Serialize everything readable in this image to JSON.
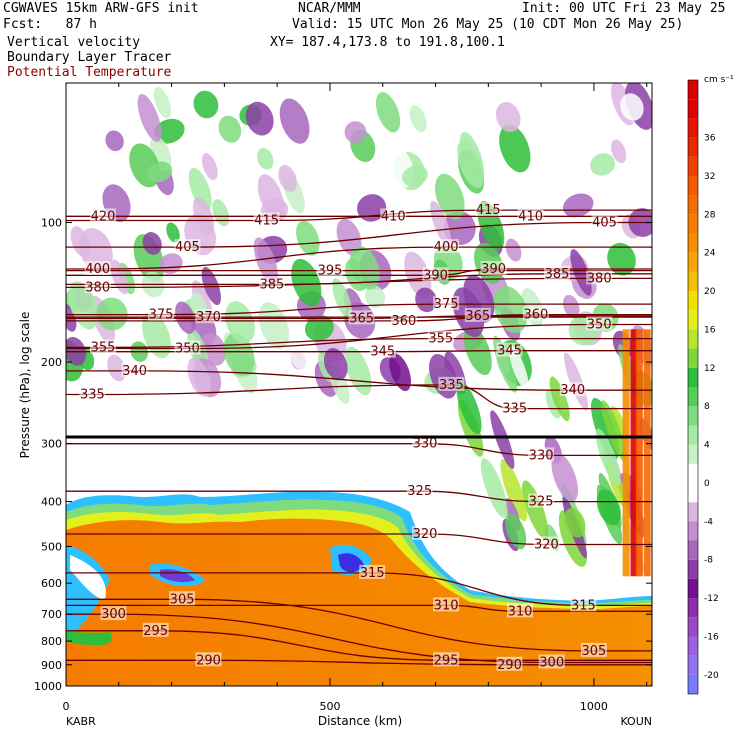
{
  "header": {
    "model": "CGWAVES 15km ARW-GFS init",
    "fcst": "Fcst:   87 h",
    "field1": "Vertical velocity",
    "field2": "Boundary Layer Tracer",
    "field3": "Potential Temperature",
    "org": "NCAR/MMM",
    "init": "Init: 00 UTC Fri 23 May 25",
    "valid": "Valid: 15 UTC Mon 26 May 25 (10 CDT Mon 26 May 25)",
    "xy": "XY= 187.4,173.8 to 191.8,100.1",
    "colors": {
      "field3": "#8b0000"
    }
  },
  "chart_data": {
    "type": "heatmap",
    "title": "Vertical velocity",
    "xlabel": "Distance (km)",
    "ylabel": "Pressure (hPa), log scale",
    "x_start_label": "KABR",
    "x_end_label": "KOUN",
    "xlim": [
      0,
      1110
    ],
    "ylim_hPa": [
      1000,
      50
    ],
    "y_scale": "log",
    "x_ticks": [
      0,
      500,
      1000
    ],
    "x_tick_labels": [
      "0",
      "500",
      "1000"
    ],
    "y_ticks": [
      100,
      200,
      300,
      400,
      500,
      600,
      700,
      800,
      900,
      1000
    ],
    "y_tick_labels": [
      "100",
      "200",
      "300",
      "400",
      "500",
      "600",
      "700",
      "800",
      "900",
      "1000"
    ],
    "colorbar": {
      "units": "cm s⁻¹",
      "bounds": [
        -22,
        -20,
        -18,
        -16,
        -14,
        -12,
        -10,
        -8,
        -6,
        -4,
        -2,
        2,
        4,
        6,
        8,
        10,
        12,
        14,
        16,
        18,
        20,
        22,
        24,
        26,
        28,
        30,
        32,
        34,
        36,
        38,
        40,
        42
      ],
      "colors": [
        "#7a7aff",
        "#8e72f0",
        "#9c60e0",
        "#9a49c6",
        "#8a2fa8",
        "#73118e",
        "#8b3fa6",
        "#a866bd",
        "#c48fd0",
        "#dcb6e2",
        "#ffffff",
        "#c6f0c6",
        "#a4eaa4",
        "#7edc7e",
        "#58cc58",
        "#2ebe3a",
        "#7dd63a",
        "#b6e52c",
        "#e4f01e",
        "#f2e000",
        "#f5c000",
        "#f5a400",
        "#f58e00",
        "#f57c00",
        "#f56c00",
        "#f55a00",
        "#f04000",
        "#ea2800",
        "#e51400",
        "#e00000",
        "#dc0000"
      ],
      "tick_values": [
        -20,
        -16,
        -12,
        -8,
        -4,
        0,
        4,
        8,
        12,
        16,
        20,
        24,
        28,
        32,
        36
      ],
      "tick_labels": [
        "-20",
        "-16",
        "-12",
        "-8",
        "-4",
        "0",
        "4",
        "8",
        "12",
        "16",
        "20",
        "24",
        "28",
        "32",
        "36"
      ]
    },
    "series": [
      {
        "name": "Boundary Layer Tracer",
        "color": "#f57c00"
      },
      {
        "name": "Potential Temperature",
        "color": "#6b0000"
      }
    ],
    "theta_labels": [
      {
        "text": "420",
        "x_km": 70,
        "p": 97
      },
      {
        "text": "415",
        "x_km": 380,
        "p": 99
      },
      {
        "text": "410",
        "x_km": 620,
        "p": 97
      },
      {
        "text": "415",
        "x_km": 800,
        "p": 94
      },
      {
        "text": "410",
        "x_km": 880,
        "p": 97
      },
      {
        "text": "405",
        "x_km": 1020,
        "p": 100
      },
      {
        "text": "405",
        "x_km": 230,
        "p": 113
      },
      {
        "text": "400",
        "x_km": 60,
        "p": 126
      },
      {
        "text": "400",
        "x_km": 720,
        "p": 113
      },
      {
        "text": "395",
        "x_km": 500,
        "p": 127
      },
      {
        "text": "390",
        "x_km": 700,
        "p": 130
      },
      {
        "text": "390",
        "x_km": 810,
        "p": 126
      },
      {
        "text": "385",
        "x_km": 390,
        "p": 136
      },
      {
        "text": "385",
        "x_km": 930,
        "p": 129
      },
      {
        "text": "380",
        "x_km": 1010,
        "p": 132
      },
      {
        "text": "380",
        "x_km": 60,
        "p": 138
      },
      {
        "text": "375",
        "x_km": 720,
        "p": 150
      },
      {
        "text": "375",
        "x_km": 180,
        "p": 158
      },
      {
        "text": "370",
        "x_km": 270,
        "p": 160
      },
      {
        "text": "365",
        "x_km": 560,
        "p": 161
      },
      {
        "text": "360",
        "x_km": 640,
        "p": 163
      },
      {
        "text": "365",
        "x_km": 780,
        "p": 159
      },
      {
        "text": "360",
        "x_km": 890,
        "p": 158
      },
      {
        "text": "350",
        "x_km": 1010,
        "p": 166
      },
      {
        "text": "355",
        "x_km": 70,
        "p": 186
      },
      {
        "text": "350",
        "x_km": 230,
        "p": 187
      },
      {
        "text": "355",
        "x_km": 710,
        "p": 178
      },
      {
        "text": "345",
        "x_km": 600,
        "p": 190
      },
      {
        "text": "345",
        "x_km": 840,
        "p": 189
      },
      {
        "text": "340",
        "x_km": 130,
        "p": 209
      },
      {
        "text": "340",
        "x_km": 960,
        "p": 230
      },
      {
        "text": "335",
        "x_km": 50,
        "p": 235
      },
      {
        "text": "335",
        "x_km": 730,
        "p": 224
      },
      {
        "text": "335",
        "x_km": 850,
        "p": 252
      },
      {
        "text": "330",
        "x_km": 680,
        "p": 300
      },
      {
        "text": "330",
        "x_km": 900,
        "p": 318
      },
      {
        "text": "325",
        "x_km": 670,
        "p": 380
      },
      {
        "text": "325",
        "x_km": 900,
        "p": 400
      },
      {
        "text": "320",
        "x_km": 680,
        "p": 470
      },
      {
        "text": "320",
        "x_km": 910,
        "p": 495
      },
      {
        "text": "315",
        "x_km": 580,
        "p": 570
      },
      {
        "text": "315",
        "x_km": 980,
        "p": 670
      },
      {
        "text": "310",
        "x_km": 720,
        "p": 670
      },
      {
        "text": "310",
        "x_km": 860,
        "p": 690
      },
      {
        "text": "305",
        "x_km": 220,
        "p": 650
      },
      {
        "text": "305",
        "x_km": 1000,
        "p": 840
      },
      {
        "text": "300",
        "x_km": 90,
        "p": 700
      },
      {
        "text": "300",
        "x_km": 920,
        "p": 890
      },
      {
        "text": "295",
        "x_km": 170,
        "p": 760
      },
      {
        "text": "295",
        "x_km": 720,
        "p": 880
      },
      {
        "text": "290",
        "x_km": 270,
        "p": 880
      },
      {
        "text": "290",
        "x_km": 840,
        "p": 900
      }
    ]
  }
}
